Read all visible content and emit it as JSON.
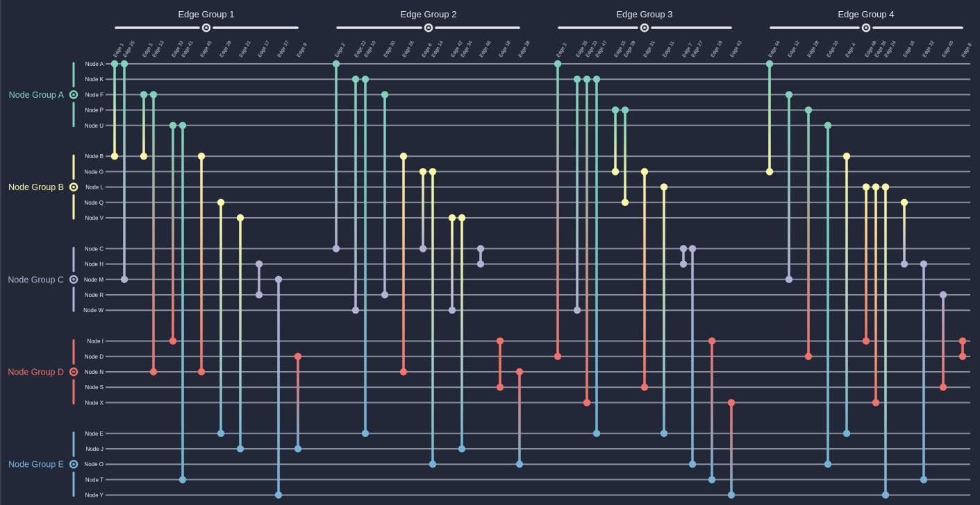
{
  "colors": {
    "background": "#222838",
    "grid_line": "#8a909c",
    "A": "#7fd1b9",
    "B": "#fcf7a6",
    "C": "#b2b2d4",
    "D": "#f37268",
    "E": "#75b4d4",
    "slider": "#e6e6e6"
  },
  "edge_groups": [
    {
      "label": "Edge Group 1"
    },
    {
      "label": "Edge Group 2"
    },
    {
      "label": "Edge Group 3"
    },
    {
      "label": "Edge Group 4"
    }
  ],
  "node_groups": [
    {
      "id": "A",
      "label": "Node Group A",
      "nodes": [
        "Node A",
        "Node K",
        "Node F",
        "Node P",
        "Node U"
      ]
    },
    {
      "id": "B",
      "label": "Node Group B",
      "nodes": [
        "Node B",
        "Node G",
        "Node L",
        "Node Q",
        "Node V"
      ]
    },
    {
      "id": "C",
      "label": "Node Group C",
      "nodes": [
        "Node C",
        "Node H",
        "Node M",
        "Node R",
        "Node W"
      ]
    },
    {
      "id": "D",
      "label": "Node Group D",
      "nodes": [
        "Node I",
        "Node D",
        "Node N",
        "Node S",
        "Node X"
      ]
    },
    {
      "id": "E",
      "label": "Node Group E",
      "nodes": [
        "Node E",
        "Node J",
        "Node O",
        "Node T",
        "Node Y"
      ]
    }
  ],
  "edges": [
    {
      "label": "Edge 1",
      "group": 0,
      "from": "Node A",
      "to": "Node B"
    },
    {
      "label": "Edge 25",
      "group": 0,
      "from": "Node A",
      "to": "Node M"
    },
    {
      "label": "Edge 5",
      "group": 0,
      "from": "Node F",
      "to": "Node B"
    },
    {
      "label": "Edge 13",
      "group": 0,
      "from": "Node F",
      "to": "Node N"
    },
    {
      "label": "Edge 33",
      "group": 0,
      "from": "Node U",
      "to": "Node I"
    },
    {
      "label": "Edge 41",
      "group": 0,
      "from": "Node U",
      "to": "Node T"
    },
    {
      "label": "Edge 45",
      "group": 0,
      "from": "Node B",
      "to": "Node N"
    },
    {
      "label": "Edge 29",
      "group": 0,
      "from": "Node Q",
      "to": "Node E"
    },
    {
      "label": "Edge 21",
      "group": 0,
      "from": "Node V",
      "to": "Node J"
    },
    {
      "label": "Edge 17",
      "group": 0,
      "from": "Node H",
      "to": "Node R"
    },
    {
      "label": "Edge 37",
      "group": 0,
      "from": "Node M",
      "to": "Node Y"
    },
    {
      "label": "Edge 9",
      "group": 0,
      "from": "Node D",
      "to": "Node J"
    },
    {
      "label": "Edge 2",
      "group": 1,
      "from": "Node A",
      "to": "Node C"
    },
    {
      "label": "Edge 22",
      "group": 1,
      "from": "Node K",
      "to": "Node W"
    },
    {
      "label": "Edge 10",
      "group": 1,
      "from": "Node K",
      "to": "Node E"
    },
    {
      "label": "Edge 30",
      "group": 1,
      "from": "Node F",
      "to": "Node R"
    },
    {
      "label": "Edge 26",
      "group": 1,
      "from": "Node B",
      "to": "Node N"
    },
    {
      "label": "Edge 6",
      "group": 1,
      "from": "Node G",
      "to": "Node C"
    },
    {
      "label": "Edge 14",
      "group": 1,
      "from": "Node G",
      "to": "Node O"
    },
    {
      "label": "Edge 42",
      "group": 1,
      "from": "Node V",
      "to": "Node W"
    },
    {
      "label": "Edge 34",
      "group": 1,
      "from": "Node V",
      "to": "Node J"
    },
    {
      "label": "Edge 46",
      "group": 1,
      "from": "Node C",
      "to": "Node H"
    },
    {
      "label": "Edge 18",
      "group": 1,
      "from": "Node I",
      "to": "Node S"
    },
    {
      "label": "Edge 38",
      "group": 1,
      "from": "Node N",
      "to": "Node O"
    },
    {
      "label": "Edge 3",
      "group": 2,
      "from": "Node A",
      "to": "Node D"
    },
    {
      "label": "Edge 35",
      "group": 2,
      "from": "Node K",
      "to": "Node W"
    },
    {
      "label": "Edge 23",
      "group": 2,
      "from": "Node K",
      "to": "Node X"
    },
    {
      "label": "Edge 47",
      "group": 2,
      "from": "Node K",
      "to": "Node E"
    },
    {
      "label": "Edge 15",
      "group": 2,
      "from": "Node P",
      "to": "Node G"
    },
    {
      "label": "Edge 39",
      "group": 2,
      "from": "Node P",
      "to": "Node Q"
    },
    {
      "label": "Edge 31",
      "group": 2,
      "from": "Node G",
      "to": "Node S"
    },
    {
      "label": "Edge 11",
      "group": 2,
      "from": "Node L",
      "to": "Node E"
    },
    {
      "label": "Edge 7",
      "group": 2,
      "from": "Node C",
      "to": "Node H"
    },
    {
      "label": "Edge 27",
      "group": 2,
      "from": "Node C",
      "to": "Node O"
    },
    {
      "label": "Edge 19",
      "group": 2,
      "from": "Node I",
      "to": "Node T"
    },
    {
      "label": "Edge 43",
      "group": 2,
      "from": "Node X",
      "to": "Node Y"
    },
    {
      "label": "Edge 44",
      "group": 3,
      "from": "Node A",
      "to": "Node G"
    },
    {
      "label": "Edge 12",
      "group": 3,
      "from": "Node F",
      "to": "Node M"
    },
    {
      "label": "Edge 28",
      "group": 3,
      "from": "Node P",
      "to": "Node D"
    },
    {
      "label": "Edge 20",
      "group": 3,
      "from": "Node U",
      "to": "Node O"
    },
    {
      "label": "Edge 4",
      "group": 3,
      "from": "Node B",
      "to": "Node E"
    },
    {
      "label": "Edge 48",
      "group": 3,
      "from": "Node L",
      "to": "Node I"
    },
    {
      "label": "Edge 36",
      "group": 3,
      "from": "Node L",
      "to": "Node X"
    },
    {
      "label": "Edge 24",
      "group": 3,
      "from": "Node L",
      "to": "Node Y"
    },
    {
      "label": "Edge 16",
      "group": 3,
      "from": "Node Q",
      "to": "Node H"
    },
    {
      "label": "Edge 32",
      "group": 3,
      "from": "Node H",
      "to": "Node T"
    },
    {
      "label": "Edge 40",
      "group": 3,
      "from": "Node R",
      "to": "Node S"
    },
    {
      "label": "Edge 8",
      "group": 3,
      "from": "Node I",
      "to": "Node D"
    }
  ]
}
